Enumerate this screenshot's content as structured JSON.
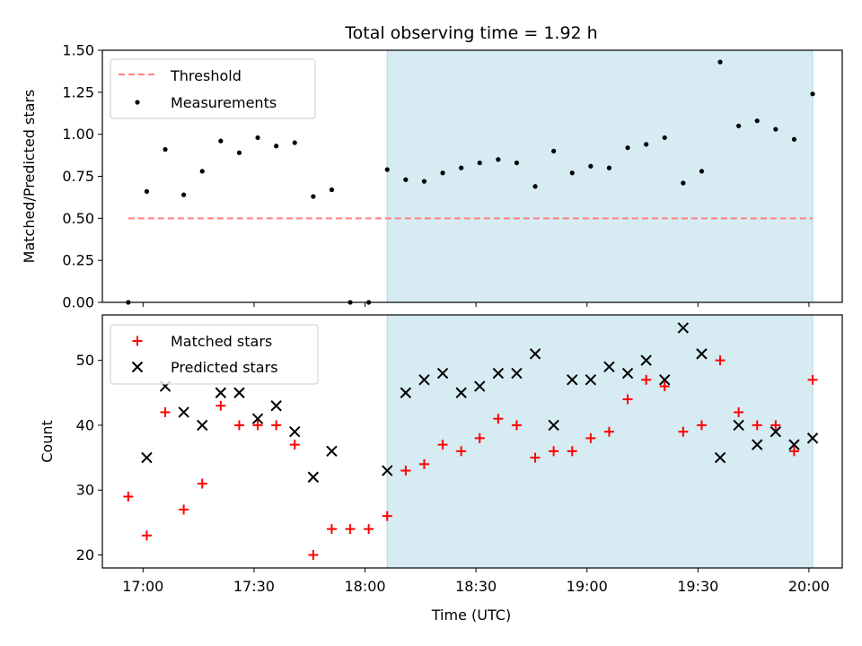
{
  "title": "Total observing time = 1.92 h",
  "colors": {
    "threshold": "#ff7f7f",
    "measurement": "#000000",
    "matched": "#ff0000",
    "predicted": "#000000",
    "span_fill": "#add8e6"
  },
  "chart_data": [
    {
      "type": "scatter",
      "ylabel": "Matched/Predicted stars",
      "ylim": [
        0,
        1.5
      ],
      "yticks": [
        "0.00",
        "0.25",
        "0.50",
        "0.75",
        "1.00",
        "1.25",
        "1.50"
      ],
      "xlim": [
        "16:49",
        "20:09"
      ],
      "highlight_span": [
        "18:06",
        "20:01"
      ],
      "legend": {
        "position": "upper-left",
        "entries": [
          "Threshold",
          "Measurements"
        ]
      },
      "threshold": {
        "name": "Threshold",
        "y": 0.5,
        "x": [
          "16:56",
          "20:01"
        ]
      },
      "series": [
        {
          "name": "Measurements",
          "points": [
            [
              "16:56",
              0.0
            ],
            [
              "17:01",
              0.66
            ],
            [
              "17:06",
              0.91
            ],
            [
              "17:11",
              0.64
            ],
            [
              "17:16",
              0.78
            ],
            [
              "17:21",
              0.96
            ],
            [
              "17:26",
              0.89
            ],
            [
              "17:31",
              0.98
            ],
            [
              "17:36",
              0.93
            ],
            [
              "17:41",
              0.95
            ],
            [
              "17:46",
              0.63
            ],
            [
              "17:51",
              0.67
            ],
            [
              "17:56",
              0.0
            ],
            [
              "18:01",
              0.0
            ],
            [
              "18:06",
              0.79
            ],
            [
              "18:11",
              0.73
            ],
            [
              "18:16",
              0.72
            ],
            [
              "18:21",
              0.77
            ],
            [
              "18:26",
              0.8
            ],
            [
              "18:31",
              0.83
            ],
            [
              "18:36",
              0.85
            ],
            [
              "18:41",
              0.83
            ],
            [
              "18:46",
              0.69
            ],
            [
              "18:51",
              0.9
            ],
            [
              "18:56",
              0.77
            ],
            [
              "19:01",
              0.81
            ],
            [
              "19:06",
              0.8
            ],
            [
              "19:11",
              0.92
            ],
            [
              "19:16",
              0.94
            ],
            [
              "19:21",
              0.98
            ],
            [
              "19:26",
              0.71
            ],
            [
              "19:31",
              0.78
            ],
            [
              "19:36",
              1.43
            ],
            [
              "19:41",
              1.05
            ],
            [
              "19:46",
              1.08
            ],
            [
              "19:51",
              1.03
            ],
            [
              "19:56",
              0.97
            ],
            [
              "20:01",
              1.24
            ]
          ]
        }
      ]
    },
    {
      "type": "scatter",
      "xlabel": "Time (UTC)",
      "ylabel": "Count",
      "ylim": [
        18,
        57
      ],
      "yticks": [
        "20",
        "30",
        "40",
        "50"
      ],
      "xlim": [
        "16:49",
        "20:09"
      ],
      "xticks": [
        "17:00",
        "17:30",
        "18:00",
        "18:30",
        "19:00",
        "19:30",
        "20:00"
      ],
      "highlight_span": [
        "18:06",
        "20:01"
      ],
      "legend": {
        "position": "upper-left",
        "entries": [
          "Matched stars",
          "Predicted stars"
        ]
      },
      "series": [
        {
          "name": "Matched stars",
          "marker": "+",
          "points": [
            [
              "16:56",
              29
            ],
            [
              "17:01",
              23
            ],
            [
              "17:06",
              42
            ],
            [
              "17:11",
              27
            ],
            [
              "17:16",
              31
            ],
            [
              "17:21",
              43
            ],
            [
              "17:26",
              40
            ],
            [
              "17:31",
              40
            ],
            [
              "17:36",
              40
            ],
            [
              "17:41",
              37
            ],
            [
              "17:46",
              20
            ],
            [
              "17:51",
              24
            ],
            [
              "17:56",
              24
            ],
            [
              "18:01",
              24
            ],
            [
              "18:06",
              26
            ],
            [
              "18:11",
              33
            ],
            [
              "18:16",
              34
            ],
            [
              "18:21",
              37
            ],
            [
              "18:26",
              36
            ],
            [
              "18:31",
              38
            ],
            [
              "18:36",
              41
            ],
            [
              "18:41",
              40
            ],
            [
              "18:46",
              35
            ],
            [
              "18:51",
              36
            ],
            [
              "18:56",
              36
            ],
            [
              "19:01",
              38
            ],
            [
              "19:06",
              39
            ],
            [
              "19:11",
              44
            ],
            [
              "19:16",
              47
            ],
            [
              "19:21",
              46
            ],
            [
              "19:26",
              39
            ],
            [
              "19:31",
              40
            ],
            [
              "19:36",
              50
            ],
            [
              "19:41",
              42
            ],
            [
              "19:46",
              40
            ],
            [
              "19:51",
              40
            ],
            [
              "19:56",
              36
            ],
            [
              "20:01",
              47
            ]
          ]
        },
        {
          "name": "Predicted stars",
          "marker": "x",
          "points": [
            [
              "17:01",
              35
            ],
            [
              "17:06",
              46
            ],
            [
              "17:11",
              42
            ],
            [
              "17:16",
              40
            ],
            [
              "17:21",
              45
            ],
            [
              "17:26",
              45
            ],
            [
              "17:31",
              41
            ],
            [
              "17:36",
              43
            ],
            [
              "17:41",
              39
            ],
            [
              "17:46",
              32
            ],
            [
              "17:51",
              36
            ],
            [
              "18:06",
              33
            ],
            [
              "18:11",
              45
            ],
            [
              "18:16",
              47
            ],
            [
              "18:21",
              48
            ],
            [
              "18:26",
              45
            ],
            [
              "18:31",
              46
            ],
            [
              "18:36",
              48
            ],
            [
              "18:41",
              48
            ],
            [
              "18:46",
              51
            ],
            [
              "18:51",
              40
            ],
            [
              "18:56",
              47
            ],
            [
              "19:01",
              47
            ],
            [
              "19:06",
              49
            ],
            [
              "19:11",
              48
            ],
            [
              "19:16",
              50
            ],
            [
              "19:21",
              47
            ],
            [
              "19:26",
              55
            ],
            [
              "19:31",
              51
            ],
            [
              "19:36",
              35
            ],
            [
              "19:41",
              40
            ],
            [
              "19:46",
              37
            ],
            [
              "19:51",
              39
            ],
            [
              "19:56",
              37
            ],
            [
              "20:01",
              38
            ]
          ]
        }
      ]
    }
  ]
}
